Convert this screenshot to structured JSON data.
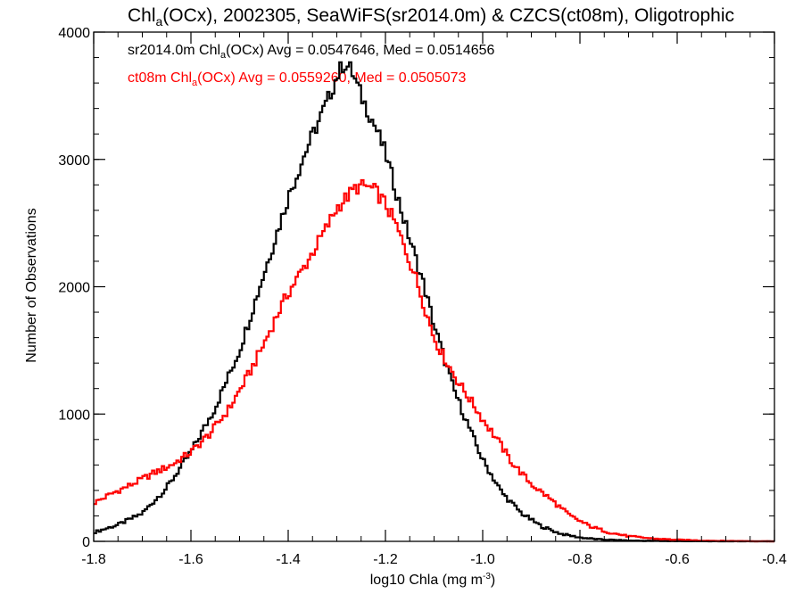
{
  "chart_data": {
    "type": "line",
    "title_parts": [
      "Chl",
      "a",
      "(OCx), 2002305, SeaWiFS(sr2014.0m) & CZCS(ct08m), Oligotrophic"
    ],
    "xlabel_parts": [
      "log10 Chla (mg m",
      "-3",
      ")"
    ],
    "ylabel": "Number of Observations",
    "xlim": [
      -1.8,
      -0.4
    ],
    "ylim": [
      0,
      4000
    ],
    "xticks": [
      -1.8,
      -1.6,
      -1.4,
      -1.2,
      -1.0,
      -0.8,
      -0.6,
      -0.4
    ],
    "xtick_labels": [
      "-1.8",
      "-1.6",
      "-1.4",
      "-1.2",
      "-1.0",
      "-0.8",
      "-0.6",
      "-0.4"
    ],
    "yticks": [
      0,
      1000,
      2000,
      3000,
      4000
    ],
    "ytick_labels": [
      "0",
      "1000",
      "2000",
      "3000",
      "4000"
    ],
    "x_minor_step": 0.05,
    "y_minor_step": 200,
    "grid": false,
    "legend": [
      {
        "parts": [
          "sr2014.0m Chl",
          "a",
          "(OCx) Avg = 0.0547646, Med = 0.0514656"
        ],
        "color": "#000000"
      },
      {
        "parts": [
          "ct08m Chl",
          "a",
          "(OCx) Avg = 0.0559260, Med = 0.0505073"
        ],
        "color": "#ff0000"
      }
    ],
    "bin_width": 0.005,
    "series": [
      {
        "color": "#000000",
        "points": [
          [
            -1.8,
            70
          ],
          [
            -1.75,
            130
          ],
          [
            -1.7,
            220
          ],
          [
            -1.65,
            420
          ],
          [
            -1.6,
            700
          ],
          [
            -1.55,
            1050
          ],
          [
            -1.5,
            1500
          ],
          [
            -1.45,
            2100
          ],
          [
            -1.4,
            2700
          ],
          [
            -1.36,
            3100
          ],
          [
            -1.32,
            3450
          ],
          [
            -1.3,
            3650
          ],
          [
            -1.285,
            3760
          ],
          [
            -1.27,
            3700
          ],
          [
            -1.25,
            3500
          ],
          [
            -1.22,
            3250
          ],
          [
            -1.2,
            3050
          ],
          [
            -1.16,
            2500
          ],
          [
            -1.12,
            2000
          ],
          [
            -1.1,
            1700
          ],
          [
            -1.06,
            1200
          ],
          [
            -1.02,
            820
          ],
          [
            -1.0,
            640
          ],
          [
            -0.96,
            380
          ],
          [
            -0.92,
            220
          ],
          [
            -0.88,
            120
          ],
          [
            -0.84,
            60
          ],
          [
            -0.8,
            30
          ],
          [
            -0.76,
            15
          ],
          [
            -0.7,
            6
          ],
          [
            -0.6,
            2
          ],
          [
            -0.5,
            0
          ],
          [
            -0.4,
            0
          ]
        ]
      },
      {
        "color": "#ff0000",
        "points": [
          [
            -1.8,
            300
          ],
          [
            -1.76,
            380
          ],
          [
            -1.72,
            450
          ],
          [
            -1.68,
            530
          ],
          [
            -1.64,
            600
          ],
          [
            -1.6,
            700
          ],
          [
            -1.56,
            850
          ],
          [
            -1.52,
            1050
          ],
          [
            -1.48,
            1320
          ],
          [
            -1.45,
            1550
          ],
          [
            -1.42,
            1800
          ],
          [
            -1.4,
            1950
          ],
          [
            -1.36,
            2200
          ],
          [
            -1.32,
            2470
          ],
          [
            -1.3,
            2620
          ],
          [
            -1.28,
            2700
          ],
          [
            -1.26,
            2780
          ],
          [
            -1.24,
            2790
          ],
          [
            -1.22,
            2750
          ],
          [
            -1.2,
            2650
          ],
          [
            -1.18,
            2500
          ],
          [
            -1.16,
            2300
          ],
          [
            -1.14,
            2100
          ],
          [
            -1.12,
            1850
          ],
          [
            -1.1,
            1600
          ],
          [
            -1.08,
            1450
          ],
          [
            -1.05,
            1250
          ],
          [
            -1.02,
            1080
          ],
          [
            -1.0,
            960
          ],
          [
            -0.97,
            800
          ],
          [
            -0.94,
            620
          ],
          [
            -0.9,
            450
          ],
          [
            -0.86,
            330
          ],
          [
            -0.82,
            200
          ],
          [
            -0.78,
            120
          ],
          [
            -0.74,
            70
          ],
          [
            -0.7,
            40
          ],
          [
            -0.65,
            22
          ],
          [
            -0.6,
            12
          ],
          [
            -0.55,
            6
          ],
          [
            -0.5,
            3
          ],
          [
            -0.4,
            0
          ]
        ]
      }
    ]
  }
}
